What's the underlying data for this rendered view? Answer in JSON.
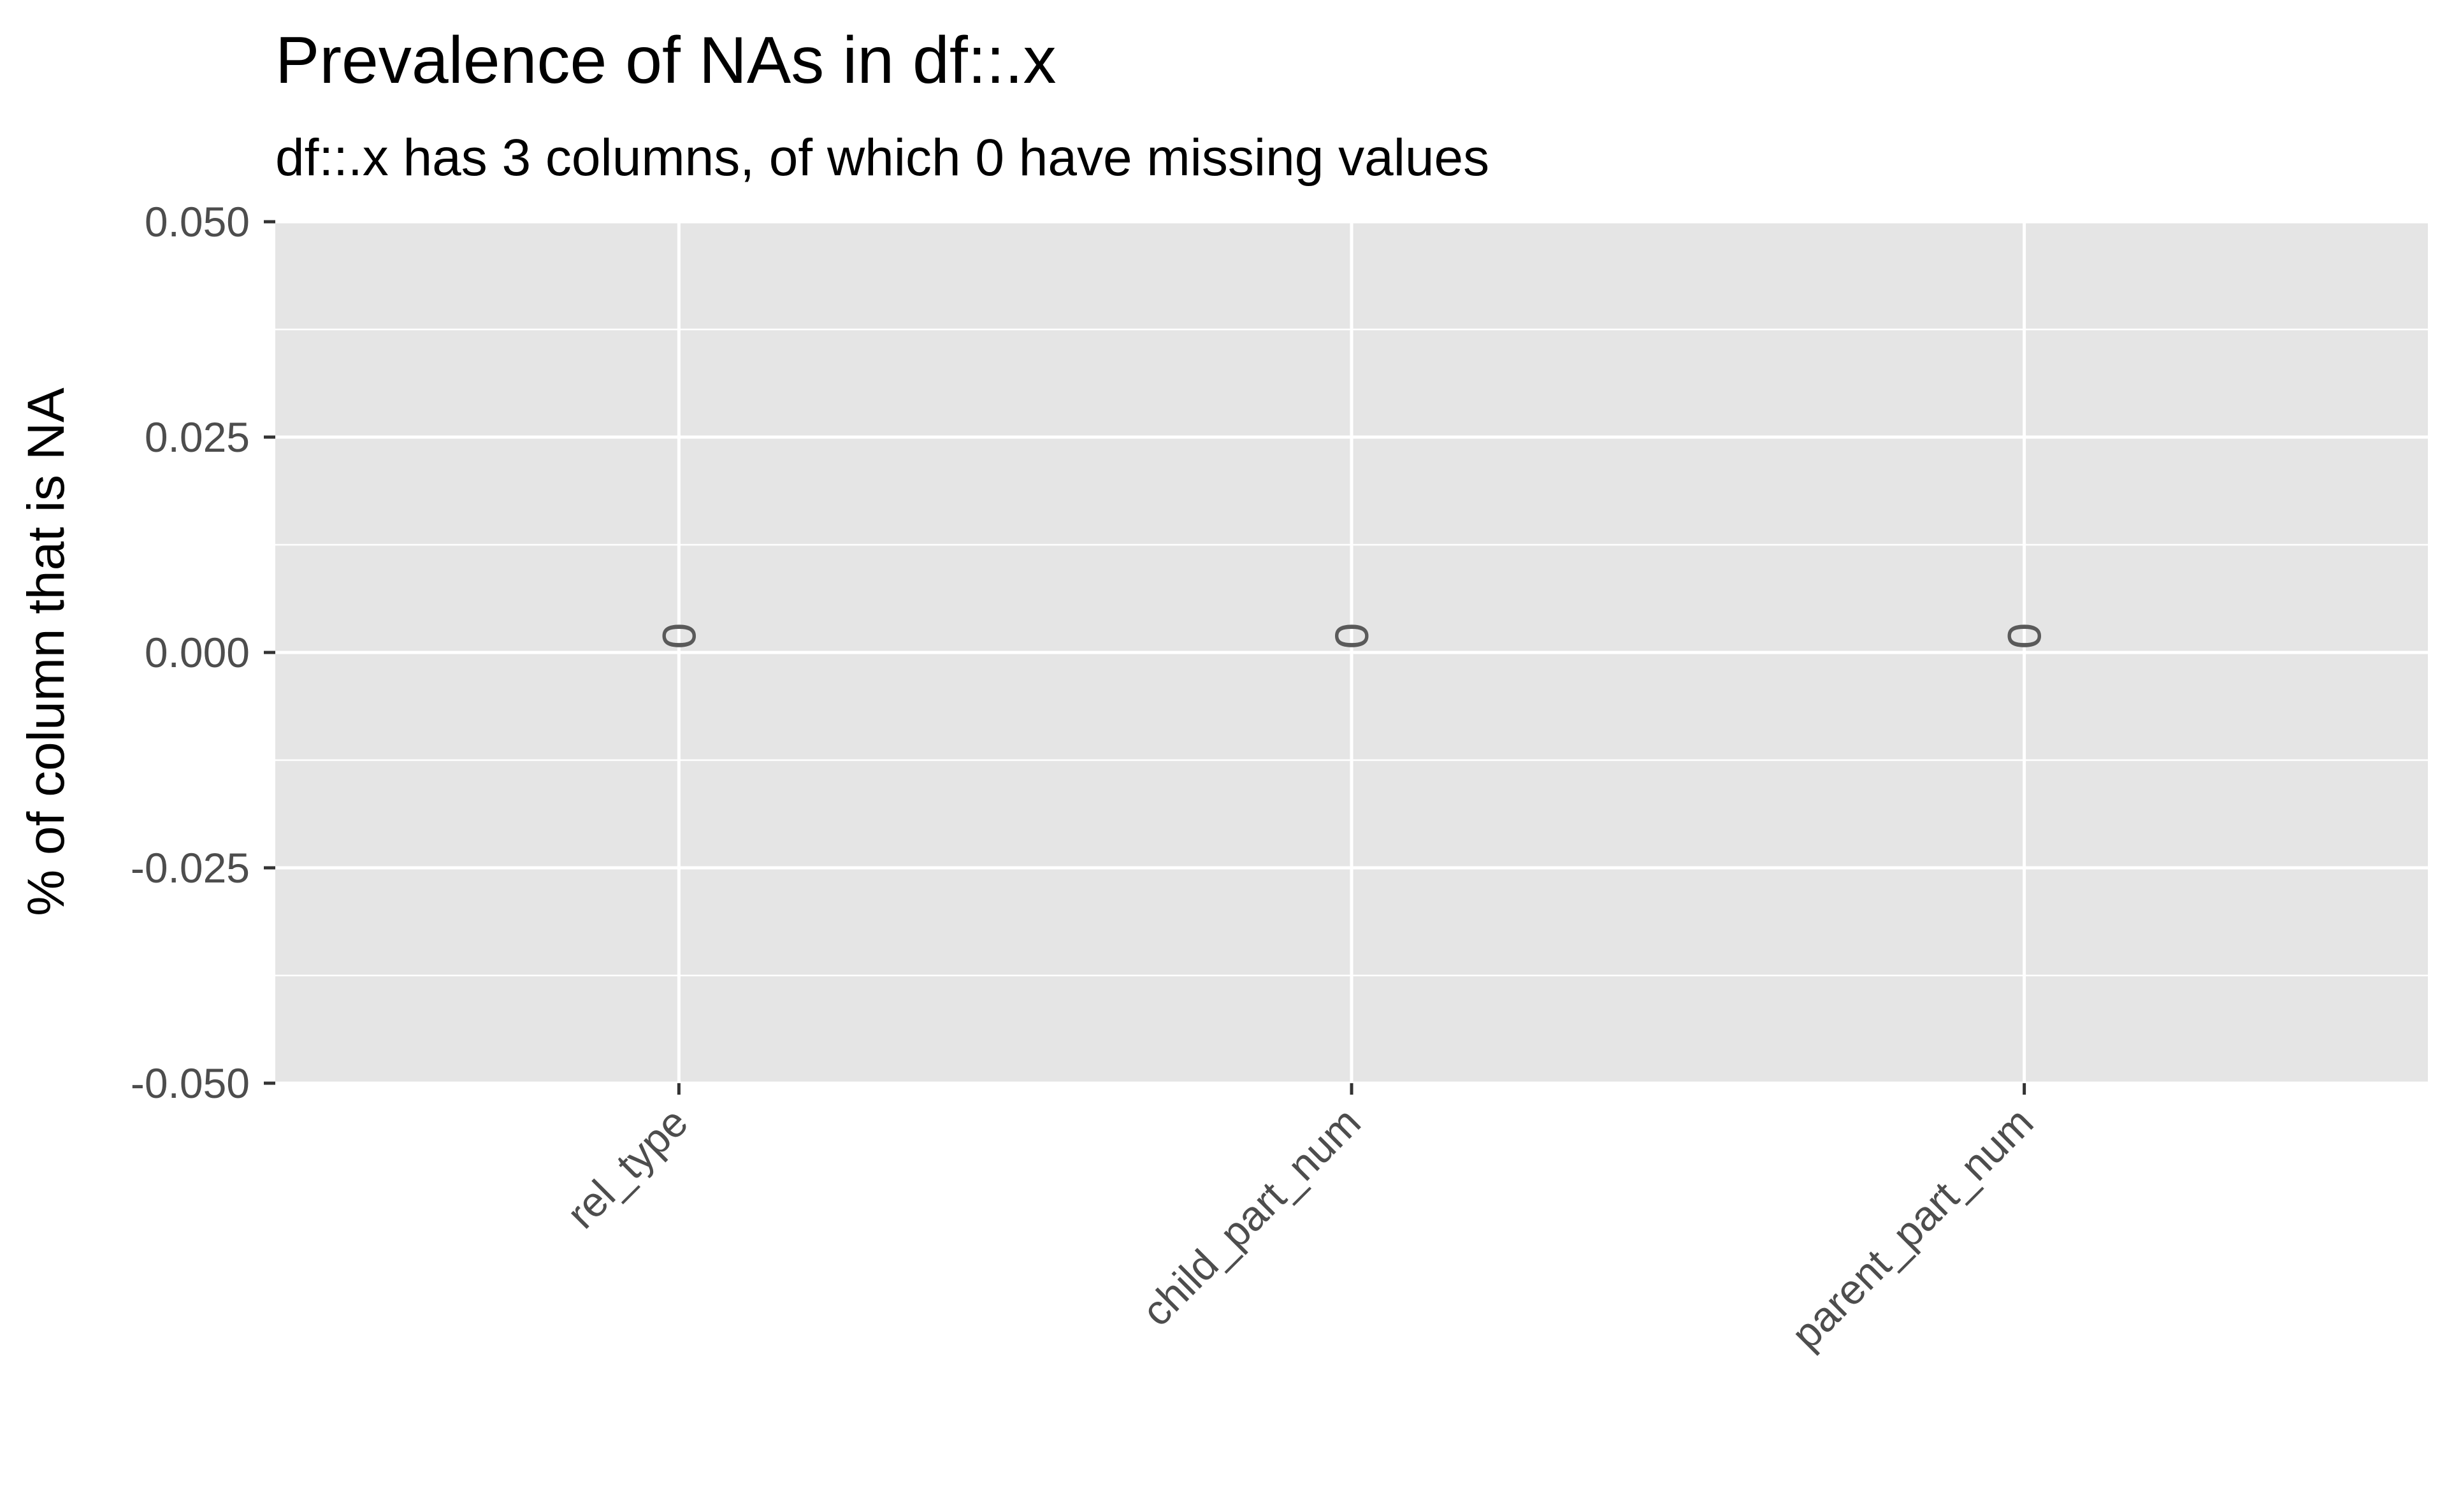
{
  "chart_data": {
    "type": "bar",
    "title": "Prevalence of NAs in df::.x",
    "subtitle": "df::.x has 3 columns, of which 0 have missing values",
    "xlabel": "",
    "ylabel": "% of column that is NA",
    "categories": [
      "rel_type",
      "child_part_num",
      "parent_part_num"
    ],
    "values": [
      0,
      0,
      0
    ],
    "data_labels": [
      "0",
      "0",
      "0"
    ],
    "ylim": [
      -0.05,
      0.05
    ],
    "yticks": [
      0.05,
      0.025,
      0.0,
      -0.025,
      -0.05
    ],
    "ytick_labels": [
      "0.050",
      "0.025",
      "0.000",
      "-0.025",
      "-0.050"
    ],
    "grid": true,
    "legend": "none",
    "colors": {
      "panel_background": "#e5e5e5",
      "grid": "#ffffff",
      "tick_text": "#4d4d4d",
      "data_label": "#5a5a5a"
    }
  }
}
